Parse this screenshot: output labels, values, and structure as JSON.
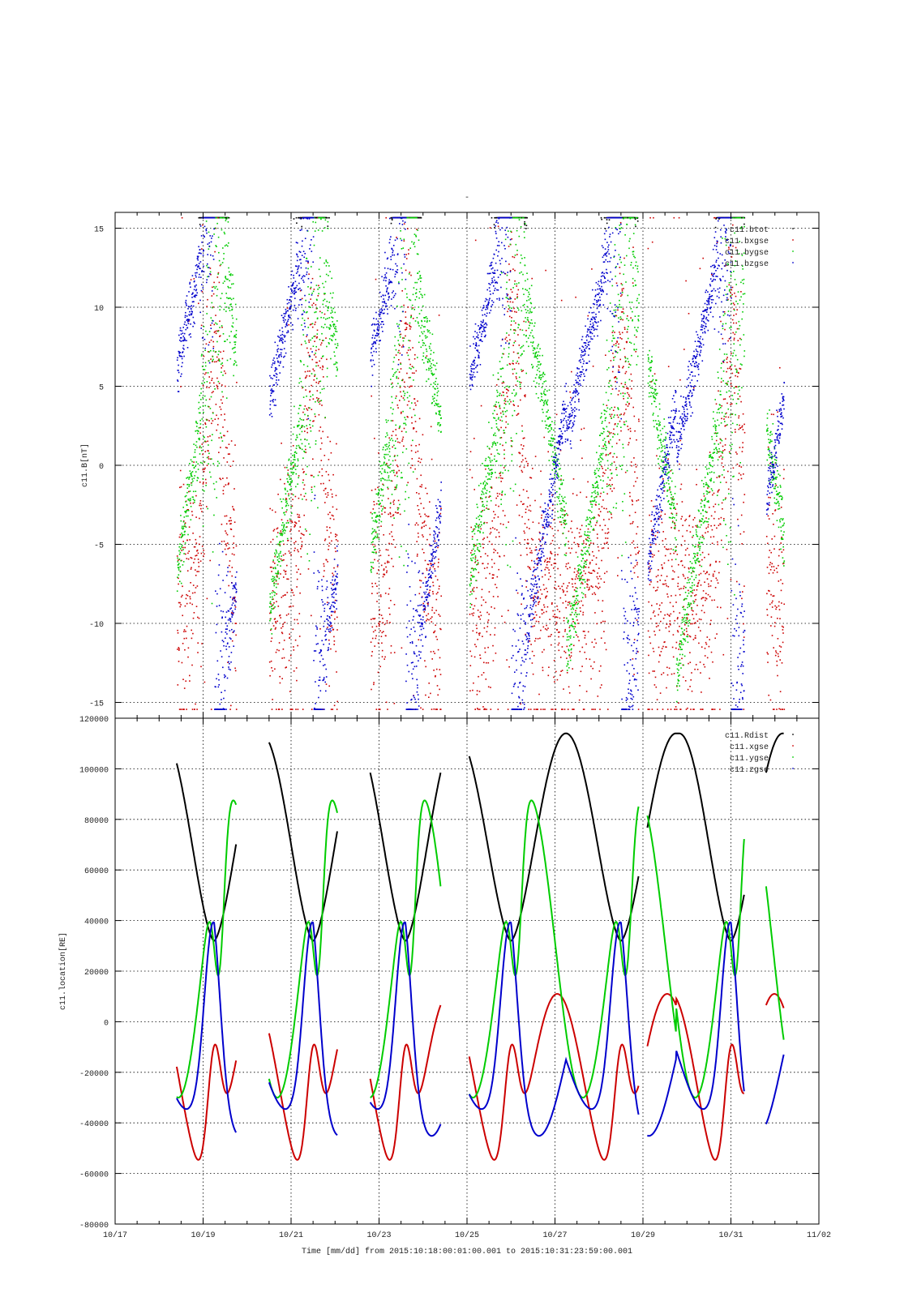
{
  "page_title": "-",
  "chart_data": [
    {
      "type": "scatter",
      "title": "",
      "ylabel": "c11.B[nT]",
      "xlim": [
        "10/17",
        "11/02"
      ],
      "ylim": [
        -16,
        16
      ],
      "yticks": [
        15,
        10,
        5,
        0,
        -5,
        -10,
        -15
      ],
      "grid": true,
      "legend_position": "top-right",
      "series": [
        {
          "name": "c11.btot",
          "color": "#000000"
        },
        {
          "name": "c11.bxgse",
          "color": "#cc0000"
        },
        {
          "name": "c11.bygse",
          "color": "#00cc00"
        },
        {
          "name": "c11.bzgse",
          "color": "#0000cc"
        }
      ]
    },
    {
      "type": "line",
      "title": "",
      "ylabel": "c11.location[RE]",
      "xlabel": "Time [mm/dd]  from 2015:10:18:00:01:00.001  to  2015:10:31:23:59:00.001",
      "xlim": [
        "10/17",
        "11/02"
      ],
      "xticks": [
        "10/17",
        "10/19",
        "10/21",
        "10/23",
        "10/25",
        "10/27",
        "10/29",
        "10/31",
        "11/02"
      ],
      "ylim": [
        -80000,
        120000
      ],
      "yticks": [
        120000,
        100000,
        80000,
        60000,
        40000,
        20000,
        0,
        -20000,
        -40000,
        -60000,
        -80000
      ],
      "grid": true,
      "legend_position": "top-right",
      "series": [
        {
          "name": "c11.Rdist",
          "color": "#000000"
        },
        {
          "name": "c11.xgse",
          "color": "#cc0000"
        },
        {
          "name": "c11.ygse",
          "color": "#00cc00"
        },
        {
          "name": "c11.zgse",
          "color": "#0000cc"
        }
      ]
    }
  ]
}
